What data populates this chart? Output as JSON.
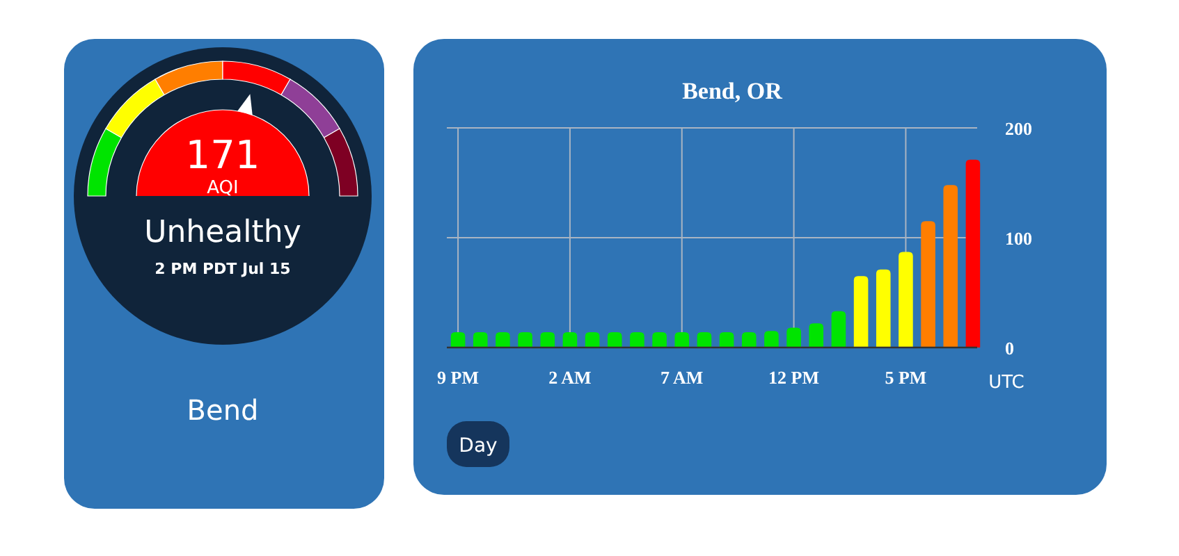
{
  "chart_data": [
    {
      "type": "other",
      "title": "Bend",
      "annotations": [
        "171",
        "AQI",
        "Unhealthy",
        "2 PM PDT Jul 15"
      ]
    },
    {
      "type": "bar",
      "title": "Bend, OR",
      "xlabel": "UTC",
      "categories": [
        "9 PM",
        null,
        null,
        null,
        null,
        "2 AM",
        null,
        null,
        null,
        null,
        "7 AM",
        null,
        null,
        null,
        null,
        "12 PM",
        null,
        null,
        null,
        null,
        "5 PM",
        null,
        null,
        null
      ],
      "values": [
        14,
        14,
        14,
        14,
        14,
        14,
        14,
        14,
        14,
        14,
        14,
        14,
        14,
        14,
        15,
        18,
        22,
        33,
        65,
        71,
        87,
        115,
        148,
        171
      ],
      "colors": [
        "#00e400",
        "#00e400",
        "#00e400",
        "#00e400",
        "#00e400",
        "#00e400",
        "#00e400",
        "#00e400",
        "#00e400",
        "#00e400",
        "#00e400",
        "#00e400",
        "#00e400",
        "#00e400",
        "#00e400",
        "#00e400",
        "#00e400",
        "#00e400",
        "#ffff00",
        "#ffff00",
        "#ffff00",
        "#ff7e00",
        "#ff7e00",
        "#ff0000"
      ],
      "ylim": [
        0,
        200
      ],
      "yticks": [
        0,
        100,
        200
      ],
      "grid": true,
      "annotations": [
        "Day"
      ]
    }
  ]
}
